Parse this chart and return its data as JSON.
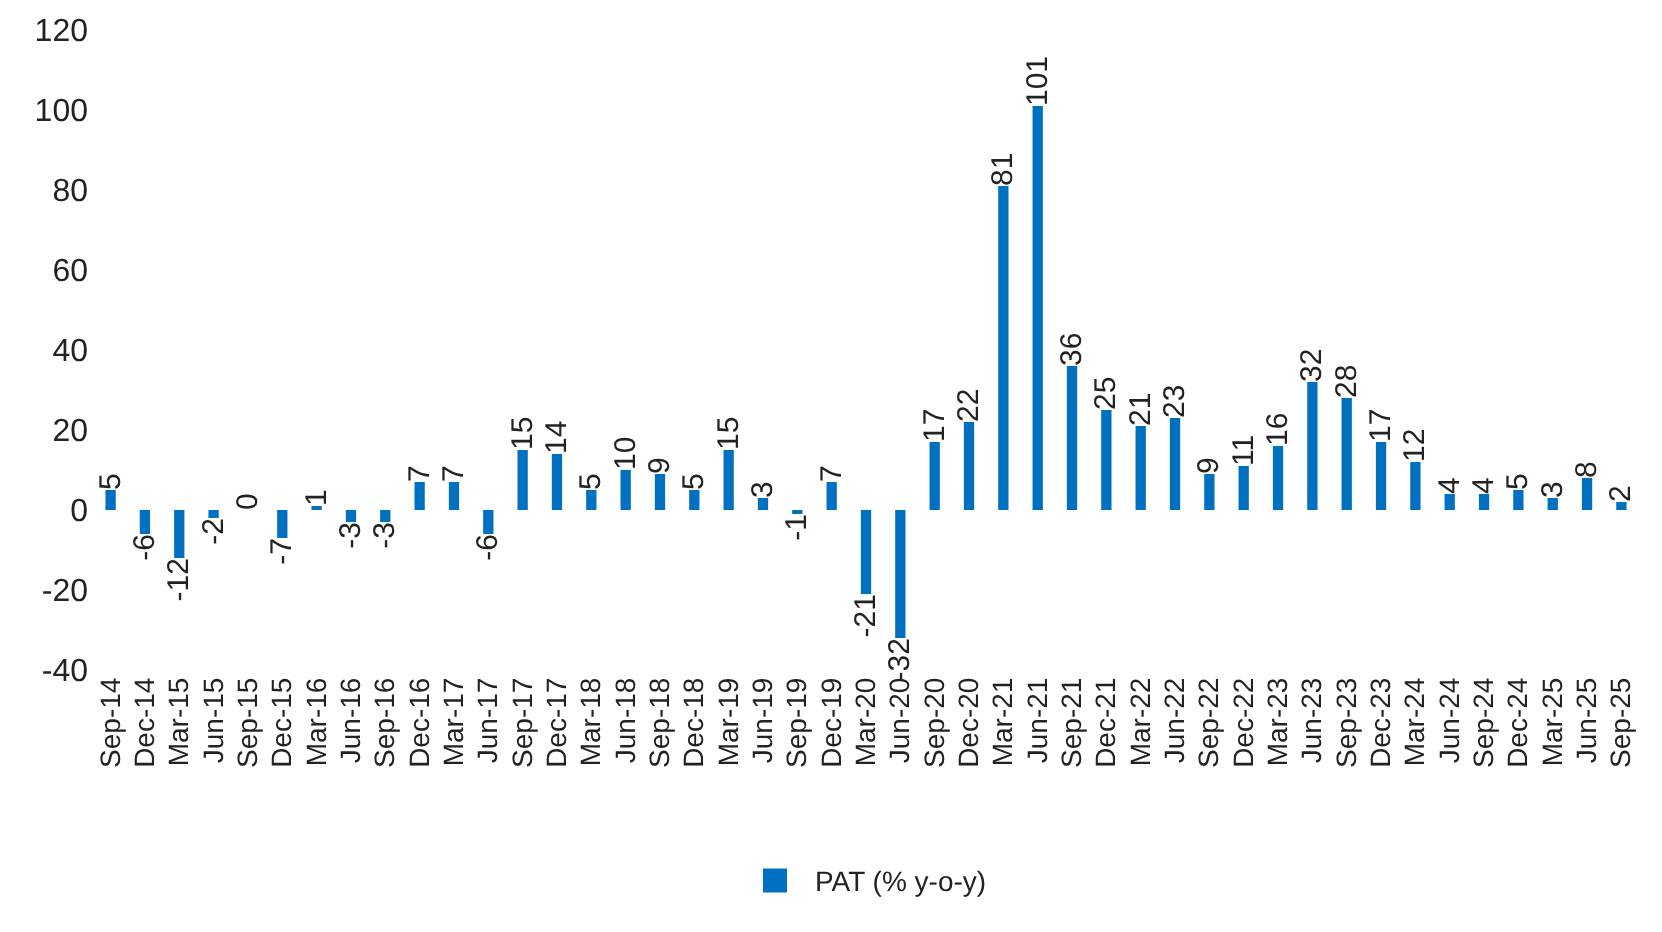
{
  "chart_data": {
    "type": "bar",
    "categories": [
      "Sep-14",
      "Dec-14",
      "Mar-15",
      "Jun-15",
      "Sep-15",
      "Dec-15",
      "Mar-16",
      "Jun-16",
      "Sep-16",
      "Dec-16",
      "Mar-17",
      "Jun-17",
      "Sep-17",
      "Dec-17",
      "Mar-18",
      "Jun-18",
      "Sep-18",
      "Dec-18",
      "Mar-19",
      "Jun-19",
      "Sep-19",
      "Dec-19",
      "Mar-20",
      "Jun-20",
      "Sep-20",
      "Dec-20",
      "Mar-21",
      "Jun-21",
      "Sep-21",
      "Dec-21",
      "Mar-22",
      "Jun-22",
      "Sep-22",
      "Dec-22",
      "Mar-23",
      "Jun-23",
      "Sep-23",
      "Dec-23",
      "Mar-24",
      "Jun-24",
      "Sep-24",
      "Dec-24",
      "Mar-25",
      "Jun-25",
      "Sep-25"
    ],
    "series": [
      {
        "name": "PAT (% y-o-y)",
        "color": "#0070c0",
        "values": [
          5,
          -6,
          -12,
          -2,
          0,
          -7,
          1,
          -3,
          -3,
          7,
          7,
          -6,
          15,
          14,
          5,
          10,
          9,
          5,
          15,
          3,
          -1,
          7,
          -21,
          -32,
          17,
          22,
          81,
          101,
          36,
          25,
          21,
          23,
          9,
          11,
          16,
          32,
          28,
          17,
          12,
          4,
          4,
          5,
          3,
          8,
          2
        ]
      }
    ],
    "ylim": [
      -40,
      120
    ],
    "yticks": [
      -40,
      -20,
      0,
      20,
      40,
      60,
      80,
      100,
      120
    ],
    "data_labels": true,
    "grid": false,
    "legend": "bottom"
  }
}
